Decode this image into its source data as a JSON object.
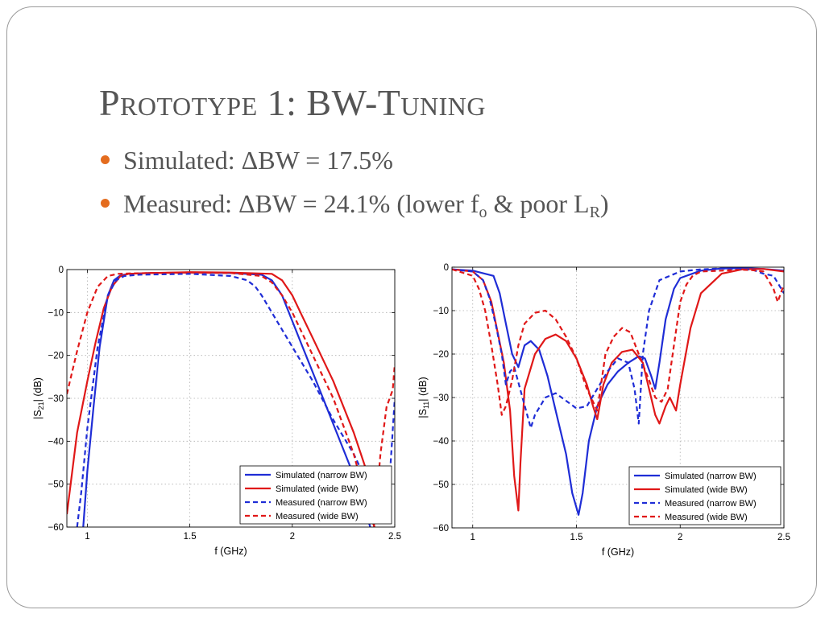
{
  "slide": {
    "title": "Prototype 1: BW-Tuning",
    "bullets": [
      {
        "prefix": "Simulated:  ",
        "delta": "ΔBW",
        "rest": " = 17.5%"
      },
      {
        "prefix": "Measured:  ",
        "delta": "ΔBW",
        "rest": " = 24.1% (lower f",
        "sub1": "o",
        "mid": " & poor L",
        "sub2": "R",
        "end": ")"
      }
    ]
  },
  "colors": {
    "bullet": "#e46c1e",
    "text": "#555555",
    "narrow": "#1f2dd6",
    "wide": "#e01818"
  },
  "chart_data": [
    {
      "type": "line",
      "title": "",
      "xlabel": "f (GHz)",
      "ylabel_main": "|S",
      "ylabel_sub": "21",
      "ylabel_end": "| (dB)",
      "xlim": [
        0.9,
        2.5
      ],
      "ylim": [
        -60,
        0
      ],
      "xticks": [
        1,
        1.5,
        2,
        2.5
      ],
      "xtick_labels": [
        "1",
        "1.5",
        "2",
        "2.5"
      ],
      "yticks": [
        0,
        -10,
        -20,
        -30,
        -40,
        -50,
        -60
      ],
      "ytick_labels": [
        "0",
        "−10",
        "−20",
        "−30",
        "−40",
        "−50",
        "−60"
      ],
      "grid": true,
      "legend_position": "bottom-right",
      "series": [
        {
          "name": "Simulated (narrow BW)",
          "color": "#1f2dd6",
          "dash": false,
          "x": [
            0.98,
            1.0,
            1.03,
            1.06,
            1.1,
            1.13,
            1.16,
            1.2,
            1.3,
            1.5,
            1.7,
            1.85,
            1.9,
            1.95,
            2.0,
            2.05,
            2.1,
            2.15,
            2.2,
            2.25,
            2.3,
            2.35,
            2.38
          ],
          "y": [
            -60,
            -47,
            -32,
            -18,
            -6,
            -2.5,
            -1.4,
            -1,
            -0.8,
            -0.7,
            -0.8,
            -1.2,
            -2.5,
            -6,
            -12,
            -18,
            -24,
            -30,
            -36,
            -42,
            -48,
            -55,
            -60
          ]
        },
        {
          "name": "Simulated (wide BW)",
          "color": "#e01818",
          "dash": false,
          "x": [
            0.9,
            0.95,
            1.0,
            1.04,
            1.08,
            1.12,
            1.16,
            1.2,
            1.3,
            1.5,
            1.7,
            1.9,
            1.95,
            2.0,
            2.05,
            2.1,
            2.2,
            2.3,
            2.37,
            2.4
          ],
          "y": [
            -57,
            -38,
            -26,
            -17,
            -9,
            -4,
            -1.6,
            -1,
            -0.8,
            -0.6,
            -0.7,
            -1,
            -2.5,
            -6,
            -11,
            -16,
            -26,
            -38,
            -48,
            -60
          ]
        },
        {
          "name": "Measured (narrow BW)",
          "color": "#1f2dd6",
          "dash": true,
          "x": [
            0.95,
            0.97,
            1.0,
            1.05,
            1.1,
            1.14,
            1.18,
            1.25,
            1.5,
            1.7,
            1.78,
            1.82,
            1.85,
            1.9,
            1.95,
            2.0,
            2.1,
            2.2,
            2.3,
            2.35,
            2.38,
            2.42,
            2.46,
            2.48,
            2.5
          ],
          "y": [
            -60,
            -52,
            -37,
            -18,
            -6,
            -2.5,
            -1.5,
            -1.2,
            -1,
            -1.5,
            -2.5,
            -4,
            -6,
            -10,
            -14,
            -18,
            -26,
            -35,
            -43,
            -48,
            -52,
            -58,
            -56,
            -45,
            -30
          ]
        },
        {
          "name": "Measured (wide BW)",
          "color": "#e01818",
          "dash": true,
          "x": [
            0.9,
            0.95,
            1.0,
            1.05,
            1.1,
            1.15,
            1.2,
            1.3,
            1.5,
            1.7,
            1.85,
            1.9,
            1.95,
            2.0,
            2.1,
            2.2,
            2.3,
            2.35,
            2.4,
            2.43,
            2.46,
            2.49,
            2.5
          ],
          "y": [
            -29,
            -19,
            -10,
            -4,
            -1.5,
            -1,
            -0.9,
            -0.8,
            -0.7,
            -0.8,
            -1.5,
            -3,
            -6,
            -10,
            -20,
            -30,
            -43,
            -52,
            -60,
            -43,
            -32,
            -28,
            -22
          ]
        }
      ]
    },
    {
      "type": "line",
      "title": "",
      "xlabel": "f (GHz)",
      "ylabel_main": "|S",
      "ylabel_sub": "11",
      "ylabel_end": "| (dB)",
      "xlim": [
        0.9,
        2.5
      ],
      "ylim": [
        -60,
        0
      ],
      "xticks": [
        1,
        1.5,
        2,
        2.5
      ],
      "xtick_labels": [
        "1",
        "1.5",
        "2",
        "2.5"
      ],
      "yticks": [
        0,
        -10,
        -20,
        -30,
        -40,
        -50,
        -60
      ],
      "ytick_labels": [
        "0",
        "−10",
        "−20",
        "−30",
        "−40",
        "−50",
        "−60"
      ],
      "grid": true,
      "legend_position": "bottom-right",
      "series": [
        {
          "name": "Simulated (narrow BW)",
          "color": "#1f2dd6",
          "dash": false,
          "x": [
            0.9,
            1.0,
            1.1,
            1.13,
            1.16,
            1.19,
            1.22,
            1.25,
            1.28,
            1.32,
            1.36,
            1.4,
            1.45,
            1.48,
            1.51,
            1.53,
            1.56,
            1.6,
            1.65,
            1.7,
            1.75,
            1.8,
            1.83,
            1.86,
            1.88,
            1.9,
            1.93,
            1.97,
            2.0,
            2.1,
            2.2,
            2.3,
            2.4,
            2.5
          ],
          "y": [
            -0.5,
            -0.8,
            -2,
            -6,
            -13,
            -20,
            -23,
            -18,
            -17,
            -19,
            -25,
            -33,
            -43,
            -52,
            -57,
            -52,
            -40,
            -32,
            -27,
            -24,
            -22,
            -20.5,
            -21,
            -25,
            -28,
            -22,
            -12,
            -5,
            -2.5,
            -0.8,
            -0.3,
            -0.2,
            -0.4,
            -0.8
          ]
        },
        {
          "name": "Simulated (wide BW)",
          "color": "#e01818",
          "dash": false,
          "x": [
            0.9,
            1.0,
            1.05,
            1.09,
            1.12,
            1.15,
            1.18,
            1.2,
            1.22,
            1.23,
            1.25,
            1.3,
            1.35,
            1.4,
            1.45,
            1.5,
            1.55,
            1.58,
            1.6,
            1.63,
            1.67,
            1.72,
            1.77,
            1.82,
            1.85,
            1.88,
            1.9,
            1.93,
            1.95,
            1.98,
            2.0,
            2.05,
            2.1,
            2.2,
            2.3,
            2.4,
            2.5
          ],
          "y": [
            -0.5,
            -1,
            -3,
            -8,
            -15,
            -22,
            -33,
            -48,
            -56,
            -45,
            -28,
            -20,
            -16.5,
            -15.5,
            -17,
            -21,
            -27,
            -32,
            -35,
            -27,
            -22,
            -19.5,
            -19,
            -22,
            -28,
            -34,
            -36,
            -32,
            -30,
            -33,
            -27,
            -14,
            -6,
            -1.5,
            -0.5,
            -0.4,
            -1
          ]
        },
        {
          "name": "Measured (narrow BW)",
          "color": "#1f2dd6",
          "dash": true,
          "x": [
            0.9,
            1.0,
            1.05,
            1.08,
            1.11,
            1.14,
            1.16,
            1.18,
            1.2,
            1.24,
            1.28,
            1.3,
            1.35,
            1.4,
            1.5,
            1.55,
            1.6,
            1.65,
            1.7,
            1.75,
            1.78,
            1.8,
            1.82,
            1.85,
            1.9,
            2.0,
            2.1,
            2.2,
            2.3,
            2.35,
            2.4,
            2.45,
            2.5
          ],
          "y": [
            -0.5,
            -1,
            -3,
            -7,
            -13,
            -20,
            -27,
            -24,
            -23,
            -30,
            -37,
            -34,
            -30,
            -29,
            -32.5,
            -32,
            -28,
            -24,
            -21,
            -22,
            -28,
            -36,
            -20,
            -10,
            -3,
            -1,
            -0.5,
            -0.3,
            -0.5,
            -0.6,
            -1.5,
            -2,
            -6
          ]
        },
        {
          "name": "Measured (wide BW)",
          "color": "#e01818",
          "dash": true,
          "x": [
            0.9,
            1.0,
            1.03,
            1.06,
            1.09,
            1.12,
            1.14,
            1.16,
            1.19,
            1.22,
            1.25,
            1.3,
            1.35,
            1.4,
            1.45,
            1.5,
            1.55,
            1.6,
            1.64,
            1.68,
            1.72,
            1.76,
            1.8,
            1.85,
            1.88,
            1.91,
            1.94,
            1.97,
            2.0,
            2.03,
            2.06,
            2.1,
            2.2,
            2.3,
            2.35,
            2.4,
            2.45,
            2.47,
            2.5
          ],
          "y": [
            -0.5,
            -2,
            -5,
            -10,
            -18,
            -27,
            -34,
            -32,
            -26,
            -18,
            -13,
            -10.5,
            -10,
            -12,
            -16,
            -21,
            -28,
            -33,
            -20,
            -16,
            -14,
            -15,
            -20,
            -26,
            -30,
            -31,
            -28,
            -18,
            -8,
            -4,
            -2,
            -1,
            -0.8,
            -0.6,
            -0.7,
            -1,
            -5,
            -8,
            -4
          ]
        }
      ]
    }
  ]
}
